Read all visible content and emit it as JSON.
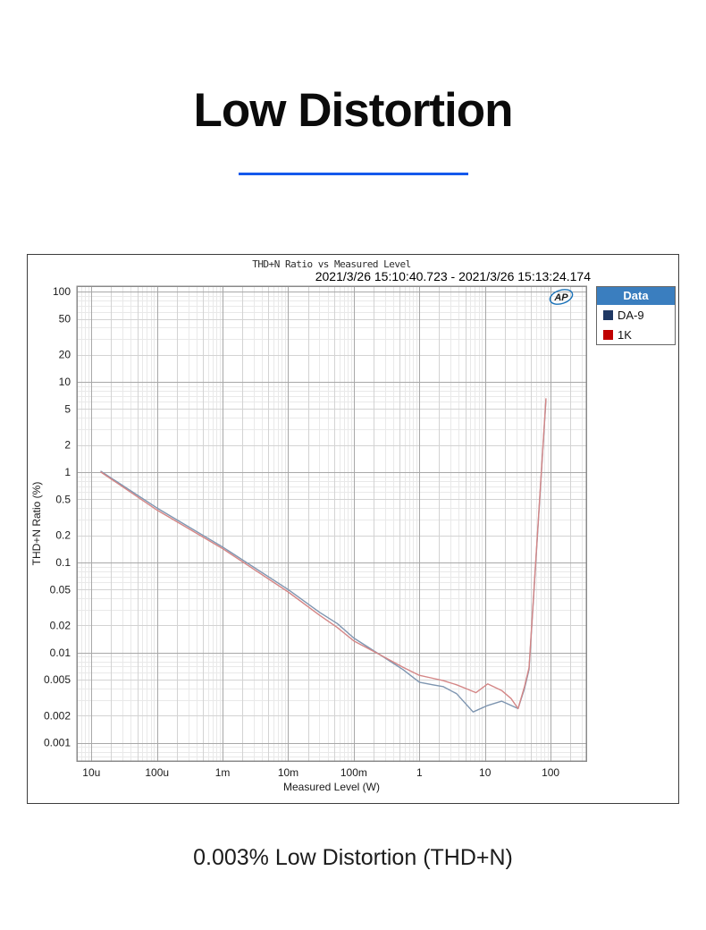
{
  "page": {
    "title": "Low Distortion",
    "caption": "0.003% Low Distortion (THD+N)",
    "accent_color": "#1459ec"
  },
  "chart": {
    "title": "THD+N Ratio vs Measured Level",
    "timestamp": "2021/3/26 15:10:40.723 - 2021/3/26 15:13:24.174",
    "logo_text": "AP",
    "logo_color": "#1871b8",
    "legend": {
      "header": "Data",
      "header_bg": "#3a7ebf",
      "items": [
        {
          "label": "DA-9",
          "swatch_color": "#1f3864"
        },
        {
          "label": "1K",
          "swatch_color": "#c00000"
        }
      ]
    }
  },
  "chart_data": {
    "type": "line",
    "title": "THD+N Ratio vs Measured Level",
    "xlabel": "Measured Level (W)",
    "ylabel": "THD+N Ratio (%)",
    "x_scale": "log",
    "y_scale": "log",
    "xlim": [
      6e-06,
      350
    ],
    "ylim": [
      0.00063,
      115
    ],
    "grid": true,
    "legend_position": "outside-right",
    "x_ticks": [
      {
        "label": "10u",
        "value": 1e-05
      },
      {
        "label": "100u",
        "value": 0.0001
      },
      {
        "label": "1m",
        "value": 0.001
      },
      {
        "label": "10m",
        "value": 0.01
      },
      {
        "label": "100m",
        "value": 0.1
      },
      {
        "label": "1",
        "value": 1
      },
      {
        "label": "10",
        "value": 10
      },
      {
        "label": "100",
        "value": 100
      }
    ],
    "y_ticks": [
      {
        "label": "100",
        "value": 100
      },
      {
        "label": "50",
        "value": 50
      },
      {
        "label": "20",
        "value": 20
      },
      {
        "label": "10",
        "value": 10
      },
      {
        "label": "5",
        "value": 5
      },
      {
        "label": "2",
        "value": 2
      },
      {
        "label": "1",
        "value": 1
      },
      {
        "label": "0.5",
        "value": 0.5
      },
      {
        "label": "0.2",
        "value": 0.2
      },
      {
        "label": "0.1",
        "value": 0.1
      },
      {
        "label": "0.05",
        "value": 0.05
      },
      {
        "label": "0.02",
        "value": 0.02
      },
      {
        "label": "0.01",
        "value": 0.01
      },
      {
        "label": "0.005",
        "value": 0.005
      },
      {
        "label": "0.002",
        "value": 0.002
      },
      {
        "label": "0.001",
        "value": 0.001
      }
    ],
    "series": [
      {
        "name": "DA-9",
        "color": "#7e95b0",
        "points": [
          [
            1.4e-05,
            1.02
          ],
          [
            0.0001,
            0.4
          ],
          [
            0.001,
            0.148
          ],
          [
            0.01,
            0.05
          ],
          [
            0.03,
            0.028
          ],
          [
            0.056,
            0.021
          ],
          [
            0.1,
            0.0145
          ],
          [
            0.25,
            0.0095
          ],
          [
            0.56,
            0.0065
          ],
          [
            1.0,
            0.0047
          ],
          [
            1.6,
            0.0044
          ],
          [
            2.3,
            0.0042
          ],
          [
            3.7,
            0.0035
          ],
          [
            6.6,
            0.0022
          ],
          [
            11,
            0.0026
          ],
          [
            18,
            0.0029
          ],
          [
            32,
            0.0024
          ],
          [
            40,
            0.004
          ],
          [
            47,
            0.0065
          ],
          [
            85,
            6.3
          ]
        ]
      },
      {
        "name": "1K",
        "color": "#d48686",
        "points": [
          [
            1.4e-05,
            1.0
          ],
          [
            0.0001,
            0.38
          ],
          [
            0.001,
            0.142
          ],
          [
            0.01,
            0.047
          ],
          [
            0.03,
            0.026
          ],
          [
            0.056,
            0.019
          ],
          [
            0.1,
            0.0135
          ],
          [
            0.25,
            0.0095
          ],
          [
            0.56,
            0.0069
          ],
          [
            1.0,
            0.0056
          ],
          [
            1.6,
            0.0052
          ],
          [
            2.3,
            0.0049
          ],
          [
            3.7,
            0.0044
          ],
          [
            5.6,
            0.0039
          ],
          [
            7.3,
            0.0036
          ],
          [
            11,
            0.0045
          ],
          [
            18,
            0.0038
          ],
          [
            25,
            0.0031
          ],
          [
            32,
            0.0024
          ],
          [
            40,
            0.0042
          ],
          [
            47,
            0.0068
          ],
          [
            85,
            6.5
          ]
        ]
      }
    ]
  }
}
